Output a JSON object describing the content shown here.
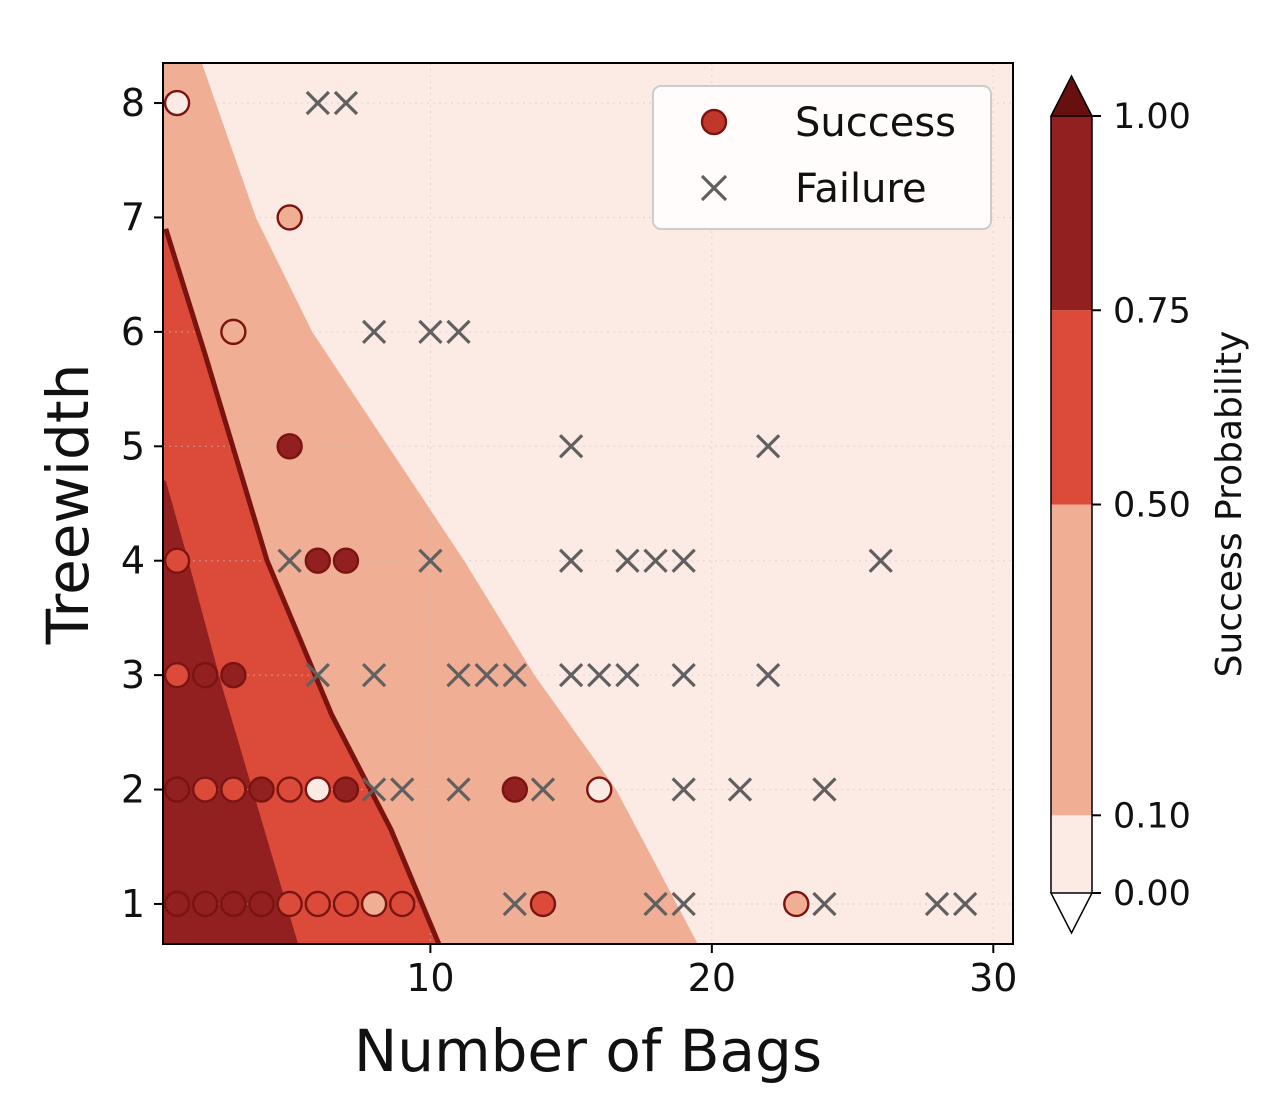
{
  "chart_data": {
    "type": "scatter",
    "xlabel": "Number of Bags",
    "ylabel": "Treewidth",
    "xlim": [
      0.5,
      30.7
    ],
    "ylim": [
      0.65,
      8.35
    ],
    "x_ticks": [
      10,
      20,
      30
    ],
    "y_ticks": [
      1,
      2,
      3,
      4,
      5,
      6,
      7,
      8
    ],
    "grid": true,
    "legend_position": "top-right",
    "legend": [
      {
        "name": "Success",
        "marker": "circle"
      },
      {
        "name": "Failure",
        "marker": "x"
      }
    ],
    "colorbar": {
      "label": "Success Probability",
      "boundaries": [
        0.0,
        0.1,
        0.5,
        0.75,
        1.0
      ],
      "tick_labels": [
        "0.00",
        "0.10",
        "0.50",
        "0.75",
        "1.00"
      ],
      "colors": [
        "#fcebe4",
        "#f0ae94",
        "#dc4b3a",
        "#932020"
      ],
      "over_color": "#67100f",
      "under_color": "#ffffff",
      "extend": "both"
    },
    "contour_boundaries": [
      {
        "level": 0.1,
        "points": [
          [
            1.88,
            8.35
          ],
          [
            3.8,
            7
          ],
          [
            5.8,
            6
          ],
          [
            8.5,
            5
          ],
          [
            11.2,
            4
          ],
          [
            13.7,
            3
          ],
          [
            16.6,
            2
          ],
          [
            19.5,
            0.65
          ]
        ]
      },
      {
        "level": 0.5,
        "points": [
          [
            0.6,
            6.9
          ],
          [
            2.0,
            5.8
          ],
          [
            4.2,
            4.0
          ],
          [
            6.5,
            2.65
          ],
          [
            8.6,
            1.65
          ],
          [
            10.3,
            0.65
          ]
        ]
      },
      {
        "level": 0.75,
        "points": [
          [
            0.6,
            4.7
          ],
          [
            1.4,
            4.0
          ],
          [
            2.6,
            2.9
          ],
          [
            3.8,
            1.9
          ],
          [
            5.3,
            0.65
          ]
        ]
      }
    ],
    "decision_line": {
      "level": 0.5,
      "color": "#7a1410"
    },
    "series": [
      {
        "name": "Success",
        "points": [
          {
            "x": 1,
            "y": 8,
            "p": 0.05
          },
          {
            "x": 5,
            "y": 7,
            "p": 0.3
          },
          {
            "x": 3,
            "y": 6,
            "p": 0.3
          },
          {
            "x": 5,
            "y": 5,
            "p": 0.95
          },
          {
            "x": 1,
            "y": 4,
            "p": 0.6
          },
          {
            "x": 6,
            "y": 4,
            "p": 0.95
          },
          {
            "x": 7,
            "y": 4,
            "p": 0.95
          },
          {
            "x": 1,
            "y": 3,
            "p": 0.6
          },
          {
            "x": 2,
            "y": 3,
            "p": 0.95
          },
          {
            "x": 3,
            "y": 3,
            "p": 0.95
          },
          {
            "x": 1,
            "y": 2,
            "p": 0.85
          },
          {
            "x": 2,
            "y": 2,
            "p": 0.6
          },
          {
            "x": 3,
            "y": 2,
            "p": 0.6
          },
          {
            "x": 4,
            "y": 2,
            "p": 0.85
          },
          {
            "x": 5,
            "y": 2,
            "p": 0.6
          },
          {
            "x": 6,
            "y": 2,
            "p": 0.05
          },
          {
            "x": 7,
            "y": 2,
            "p": 0.95
          },
          {
            "x": 13,
            "y": 2,
            "p": 0.95
          },
          {
            "x": 16,
            "y": 2,
            "p": 0.05
          },
          {
            "x": 1,
            "y": 1,
            "p": 0.95
          },
          {
            "x": 2,
            "y": 1,
            "p": 0.95
          },
          {
            "x": 3,
            "y": 1,
            "p": 0.85
          },
          {
            "x": 4,
            "y": 1,
            "p": 0.85
          },
          {
            "x": 5,
            "y": 1,
            "p": 0.6
          },
          {
            "x": 6,
            "y": 1,
            "p": 0.6
          },
          {
            "x": 7,
            "y": 1,
            "p": 0.6
          },
          {
            "x": 8,
            "y": 1,
            "p": 0.3
          },
          {
            "x": 9,
            "y": 1,
            "p": 0.6
          },
          {
            "x": 14,
            "y": 1,
            "p": 0.6
          },
          {
            "x": 23,
            "y": 1,
            "p": 0.3
          }
        ]
      },
      {
        "name": "Failure",
        "points": [
          {
            "x": 6,
            "y": 8
          },
          {
            "x": 7,
            "y": 8
          },
          {
            "x": 8,
            "y": 6
          },
          {
            "x": 10,
            "y": 6
          },
          {
            "x": 11,
            "y": 6
          },
          {
            "x": 15,
            "y": 5
          },
          {
            "x": 22,
            "y": 5
          },
          {
            "x": 5,
            "y": 4
          },
          {
            "x": 10,
            "y": 4
          },
          {
            "x": 15,
            "y": 4
          },
          {
            "x": 17,
            "y": 4
          },
          {
            "x": 18,
            "y": 4
          },
          {
            "x": 19,
            "y": 4
          },
          {
            "x": 26,
            "y": 4
          },
          {
            "x": 6,
            "y": 3
          },
          {
            "x": 8,
            "y": 3
          },
          {
            "x": 11,
            "y": 3
          },
          {
            "x": 12,
            "y": 3
          },
          {
            "x": 13,
            "y": 3
          },
          {
            "x": 15,
            "y": 3
          },
          {
            "x": 16,
            "y": 3
          },
          {
            "x": 17,
            "y": 3
          },
          {
            "x": 19,
            "y": 3
          },
          {
            "x": 22,
            "y": 3
          },
          {
            "x": 8,
            "y": 2
          },
          {
            "x": 9,
            "y": 2
          },
          {
            "x": 11,
            "y": 2
          },
          {
            "x": 14,
            "y": 2
          },
          {
            "x": 19,
            "y": 2
          },
          {
            "x": 21,
            "y": 2
          },
          {
            "x": 24,
            "y": 2
          },
          {
            "x": 13,
            "y": 1
          },
          {
            "x": 18,
            "y": 1
          },
          {
            "x": 19,
            "y": 1
          },
          {
            "x": 24,
            "y": 1
          },
          {
            "x": 28,
            "y": 1
          },
          {
            "x": 29,
            "y": 1
          }
        ]
      }
    ]
  }
}
